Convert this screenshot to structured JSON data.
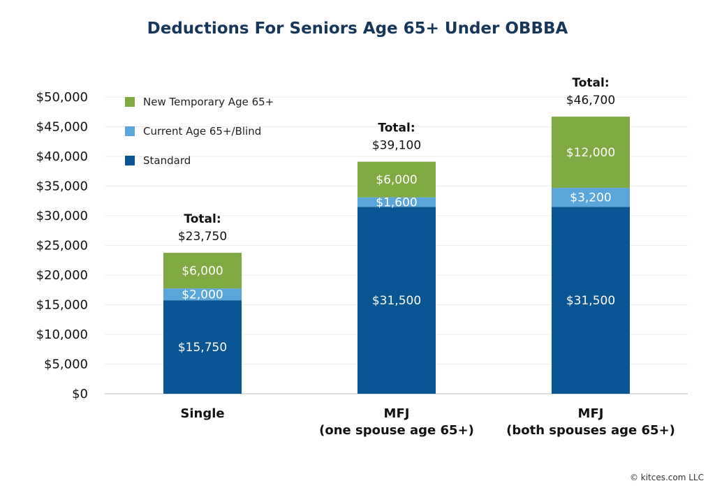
{
  "chart_data": {
    "type": "bar",
    "stacked": true,
    "title": "Deductions For Seniors Age 65+ Under OBBBA",
    "categories": [
      [
        "Single"
      ],
      [
        "MFJ",
        "(one spouse age 65+)"
      ],
      [
        "MFJ",
        "(both spouses age 65+)"
      ]
    ],
    "series": [
      {
        "name": "Standard",
        "color": "#0a5593",
        "values": [
          15750,
          31500,
          31500
        ],
        "labels": [
          "$15,750",
          "$31,500",
          "$31,500"
        ]
      },
      {
        "name": "Current Age 65+/Blind",
        "color": "#5aa6db",
        "values": [
          2000,
          1600,
          3200
        ],
        "labels": [
          "$2,000",
          "$1,600",
          "$3,200"
        ]
      },
      {
        "name": "New Temporary Age 65+",
        "color": "#80a843",
        "values": [
          6000,
          6000,
          12000
        ],
        "labels": [
          "$6,000",
          "$6,000",
          "$12,000"
        ]
      }
    ],
    "totals": {
      "label": "Total:",
      "values": [
        "$23,750",
        "$39,100",
        "$46,700"
      ]
    },
    "ylim": [
      0,
      50000
    ],
    "yticks": [
      "$0",
      "$5,000",
      "$10,000",
      "$15,000",
      "$20,000",
      "$25,000",
      "$30,000",
      "$35,000",
      "$40,000",
      "$45,000",
      "$50,000"
    ],
    "grid": true,
    "legend": "top-left"
  },
  "credit": "© kitces.com LLC"
}
